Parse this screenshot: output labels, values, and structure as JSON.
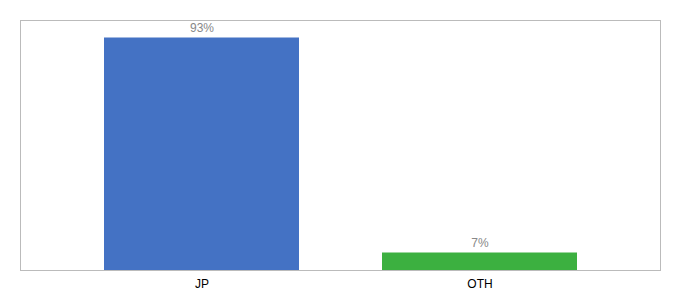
{
  "chart_data": {
    "type": "bar",
    "categories": [
      "JP",
      "OTH"
    ],
    "values": [
      93,
      7
    ],
    "value_labels": [
      "93%",
      "7%"
    ],
    "colors": [
      "#4472c4",
      "#3cb040"
    ],
    "ylim": [
      0,
      100
    ],
    "data_labels": true,
    "tick_labels": "x",
    "grid": false
  }
}
